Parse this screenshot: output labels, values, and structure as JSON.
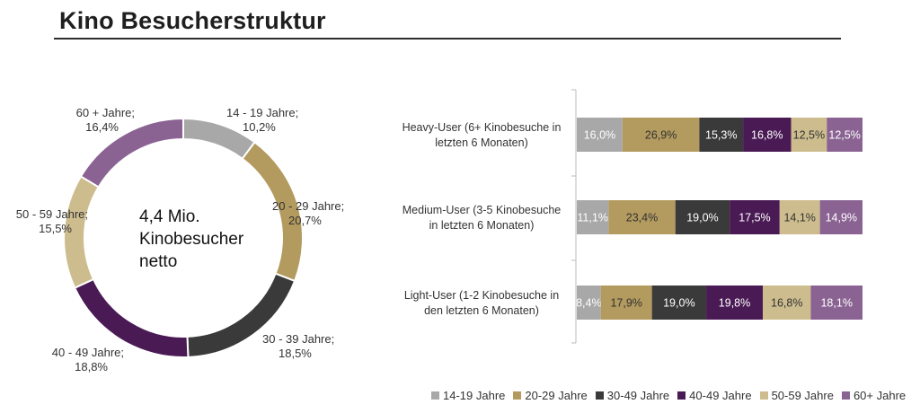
{
  "page": {
    "title": "Kino Besucherstruktur"
  },
  "colors": {
    "14-19": "#a8a8a8",
    "20-29": "#b39a5e",
    "30-39": "#3a3a3a",
    "40-49": "#4a1a55",
    "50-59": "#cdbd8e",
    "60+": "#8a6393"
  },
  "chart_data": [
    {
      "type": "pie",
      "donut": true,
      "center_text": [
        "4,4 Mio.",
        "Kinobesucher",
        "netto"
      ],
      "slices": [
        {
          "name": "14 - 19 Jahre;",
          "value": 10.2,
          "label": "10,2%",
          "color": "#a8a8a8"
        },
        {
          "name": "20 - 29 Jahre;",
          "value": 20.7,
          "label": "20,7%",
          "color": "#b39a5e"
        },
        {
          "name": "30 - 39 Jahre;",
          "value": 18.5,
          "label": "18,5%",
          "color": "#3a3a3a"
        },
        {
          "name": "40 - 49 Jahre;",
          "value": 18.8,
          "label": "18,8%",
          "color": "#4a1a55"
        },
        {
          "name": "50 - 59 Jahre;",
          "value": 15.5,
          "label": "15,5%",
          "color": "#cdbd8e"
        },
        {
          "name": "60 + Jahre;",
          "value": 16.4,
          "label": "16,4%",
          "color": "#8a6393"
        }
      ]
    },
    {
      "type": "bar",
      "orientation": "horizontal",
      "stacked": true,
      "percent_stacked": true,
      "categories": [
        [
          "Heavy-User (6+ Kinobesuche in",
          "letzten 6 Monaten)"
        ],
        [
          "Medium-User (3-5 Kinobesuche",
          "in letzten 6 Monaten)"
        ],
        [
          "Light-User (1-2 Kinobesuche in",
          "den letzten 6 Monaten)"
        ]
      ],
      "series": [
        {
          "name": "14-19 Jahre",
          "color": "#a8a8a8",
          "text_color": "#ffffff",
          "values": [
            16.0,
            11.1,
            8.4
          ],
          "labels": [
            "16,0%",
            "11,1%",
            "8,4%"
          ]
        },
        {
          "name": "20-29 Jahre",
          "color": "#b39a5e",
          "text_color": "#333333",
          "values": [
            26.9,
            23.4,
            17.9
          ],
          "labels": [
            "26,9%",
            "23,4%",
            "17,9%"
          ]
        },
        {
          "name": "30-49 Jahre",
          "color": "#3a3a3a",
          "text_color": "#ffffff",
          "values": [
            15.3,
            19.0,
            19.0
          ],
          "labels": [
            "15,3%",
            "19,0%",
            "19,0%"
          ]
        },
        {
          "name": "40-49 Jahre",
          "color": "#4a1a55",
          "text_color": "#ffffff",
          "values": [
            16.8,
            17.5,
            19.8
          ],
          "labels": [
            "16,8%",
            "17,5%",
            "19,8%"
          ]
        },
        {
          "name": "50-59 Jahre",
          "color": "#cdbd8e",
          "text_color": "#333333",
          "values": [
            12.5,
            14.1,
            16.8
          ],
          "labels": [
            "12,5%",
            "14,1%",
            "16,8%"
          ]
        },
        {
          "name": "60+ Jahre",
          "color": "#8a6393",
          "text_color": "#ffffff",
          "values": [
            12.5,
            14.9,
            18.1
          ],
          "labels": [
            "12,5%",
            "14,9%",
            "18,1%"
          ]
        }
      ],
      "legend_position": "bottom"
    }
  ]
}
